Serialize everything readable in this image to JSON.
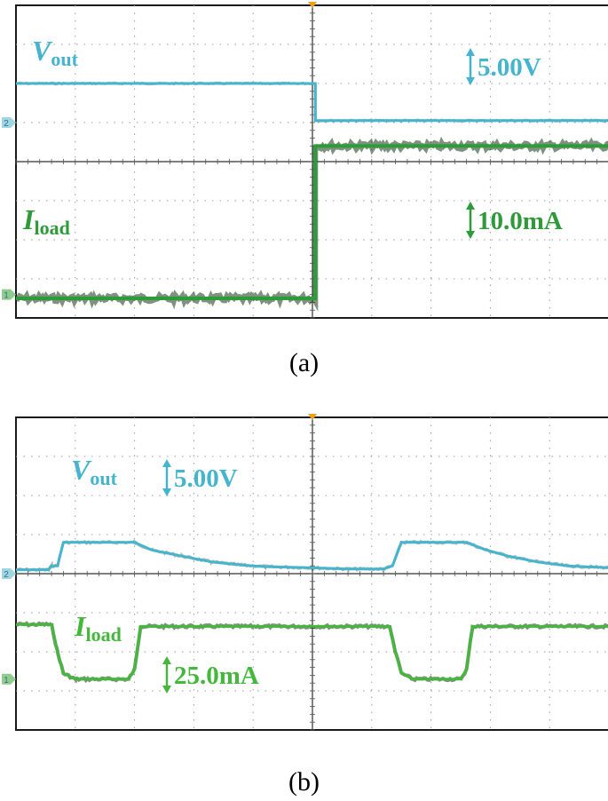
{
  "figure": {
    "captions": [
      "(a)",
      "(b)"
    ]
  },
  "chart_data": [
    {
      "type": "line",
      "panel": "(a)",
      "title": "",
      "grid": true,
      "time_divisions": 10,
      "vertical_divisions": 8,
      "colors": {
        "vout": "#45b4cf",
        "iload": "#2f9a3a",
        "trigger": "#f0a020"
      },
      "trigger_marker_div": 5,
      "channel_markers": [
        {
          "label": "2",
          "level_div": 5.0,
          "color": "#9fd6e6"
        },
        {
          "label": "1",
          "level_div": 0.6,
          "color": "#8fcc8f"
        }
      ],
      "scales": [
        {
          "channel": "Vout",
          "text": "5.00V",
          "color": "#45b4cf"
        },
        {
          "channel": "Iload",
          "text": "10.0mA",
          "color": "#2f9a3a"
        }
      ],
      "series": [
        {
          "name": "Vout",
          "symbol": "V",
          "subscript": "out",
          "color": "#45b4cf",
          "x": [
            0,
            5.05,
            5.05,
            10
          ],
          "y": [
            6.0,
            6.0,
            5.05,
            5.05
          ]
        },
        {
          "name": "Iload",
          "symbol": "I",
          "subscript": "load",
          "color": "#2f9a3a",
          "x": [
            0,
            5.05,
            5.05,
            10
          ],
          "y": [
            0.5,
            0.5,
            4.4,
            4.4
          ]
        }
      ]
    },
    {
      "type": "line",
      "panel": "(b)",
      "title": "",
      "grid": true,
      "time_divisions": 10,
      "vertical_divisions": 8,
      "colors": {
        "vout": "#45b4cf",
        "iload": "#44b83a",
        "trigger": "#f0a020"
      },
      "trigger_marker_div": 5,
      "channel_markers": [
        {
          "label": "2",
          "level_div": 4.0,
          "color": "#9fd6e6"
        },
        {
          "label": "1",
          "level_div": 1.3,
          "color": "#8fcc8f"
        }
      ],
      "scales": [
        {
          "channel": "Vout",
          "text": "5.00V",
          "color": "#45b4cf"
        },
        {
          "channel": "Iload",
          "text": "25.0mA",
          "color": "#44b83a"
        }
      ],
      "series": [
        {
          "name": "Vout",
          "symbol": "V",
          "subscript": "out",
          "color": "#45b4cf",
          "x": [
            0,
            0.55,
            0.6,
            0.7,
            0.8,
            2.0,
            2.3,
            2.8,
            3.3,
            3.8,
            4.2,
            5.0,
            5.6,
            6.2,
            6.35,
            6.5,
            7.6,
            7.9,
            8.3,
            8.8,
            9.3,
            10
          ],
          "y": [
            4.1,
            4.1,
            4.2,
            4.2,
            4.8,
            4.8,
            4.6,
            4.45,
            4.3,
            4.22,
            4.18,
            4.15,
            4.12,
            4.12,
            4.2,
            4.8,
            4.8,
            4.62,
            4.45,
            4.3,
            4.2,
            4.15
          ]
        },
        {
          "name": "Iload",
          "symbol": "I",
          "subscript": "load",
          "color": "#44b83a",
          "x": [
            0,
            0.6,
            0.7,
            0.8,
            1.0,
            1.9,
            2.0,
            2.1,
            6.3,
            6.4,
            6.5,
            6.7,
            7.5,
            7.6,
            7.7,
            10
          ],
          "y": [
            2.7,
            2.7,
            2.0,
            1.45,
            1.3,
            1.3,
            1.55,
            2.65,
            2.65,
            2.0,
            1.45,
            1.3,
            1.3,
            1.55,
            2.65,
            2.65
          ]
        }
      ]
    }
  ]
}
